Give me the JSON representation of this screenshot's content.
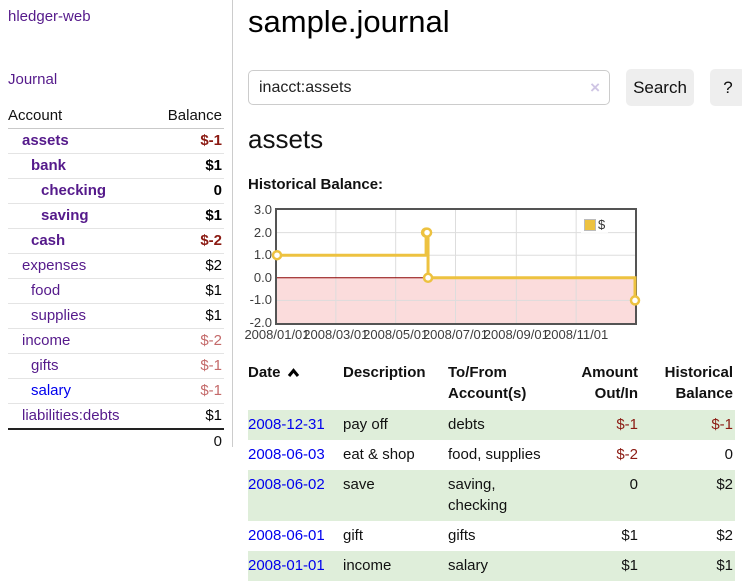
{
  "sidebar": {
    "brand": "hledger-web",
    "nav": {
      "journal": "Journal"
    },
    "accounts_table": {
      "headers": {
        "account": "Account",
        "balance": "Balance"
      },
      "rows": [
        {
          "name": "assets",
          "indent": 0,
          "bold": true,
          "balance": "$-1",
          "neg": "dark"
        },
        {
          "name": "bank",
          "indent": 1,
          "bold": true,
          "balance": "$1"
        },
        {
          "name": "checking",
          "indent": 2,
          "bold": true,
          "balance": "0"
        },
        {
          "name": "saving",
          "indent": 2,
          "bold": true,
          "balance": "$1"
        },
        {
          "name": "cash",
          "indent": 1,
          "bold": true,
          "balance": "$-2",
          "neg": "dark"
        },
        {
          "name": "expenses",
          "indent": 0,
          "bold": false,
          "balance": "$2"
        },
        {
          "name": "food",
          "indent": 1,
          "bold": false,
          "balance": "$1"
        },
        {
          "name": "supplies",
          "indent": 1,
          "bold": false,
          "balance": "$1"
        },
        {
          "name": "income",
          "indent": 0,
          "bold": false,
          "balance": "$-2",
          "neg": "light"
        },
        {
          "name": "gifts",
          "indent": 1,
          "bold": false,
          "balance": "$-1",
          "neg": "light"
        },
        {
          "name": "salary",
          "indent": 1,
          "bold": false,
          "balance": "$-1",
          "neg": "light",
          "link": "blue"
        },
        {
          "name": "liabilities:debts",
          "indent": 0,
          "bold": false,
          "balance": "$1"
        }
      ],
      "total": "0"
    }
  },
  "header": {
    "title": "sample.journal"
  },
  "search": {
    "value": "inacct:assets",
    "clear": "×",
    "button": "Search",
    "help": "?"
  },
  "account_page": {
    "heading": "assets",
    "chart_label": "Historical Balance:"
  },
  "chart_data": {
    "type": "line",
    "title": "Historical Balance:",
    "step": "after",
    "x": [
      "2008-01-01",
      "2008-06-01",
      "2008-06-02",
      "2008-06-03",
      "2008-12-31"
    ],
    "values": [
      1,
      2,
      2,
      0,
      -1
    ],
    "xlim": [
      "2008-01-01",
      "2008-12-31"
    ],
    "ylim": [
      -2,
      3
    ],
    "yticks": [
      3,
      2,
      1,
      0,
      -1,
      -2
    ],
    "ytick_labels": [
      "3.0",
      "2.0",
      "1.0",
      "0.0",
      "-1.0",
      "-2.0"
    ],
    "xticks": [
      "2008-01-01",
      "2008-03-01",
      "2008-05-01",
      "2008-07-01",
      "2008-09-01",
      "2008-11-01"
    ],
    "xtick_labels": [
      "2008/01/01",
      "2008/03/01",
      "2008/05/01",
      "2008/07/01",
      "2008/09/01",
      "2008/11/01"
    ],
    "legend": [
      {
        "label": "$",
        "color": "#edc240"
      }
    ],
    "grid": true,
    "legend_position": "top-right",
    "colors": {
      "line": "#edc240",
      "below_zero_fill": "#fbdcdc",
      "zero_line": "#8b0000",
      "grid": "#dddddd",
      "border": "#545454"
    }
  },
  "register": {
    "headers": [
      "Date",
      "Description",
      "To/From Account(s)",
      "Amount Out/In",
      "Historical Balance"
    ],
    "rows": [
      {
        "date": "2008-12-31",
        "description": "pay off",
        "accounts": "debts",
        "amount": "$-1",
        "amount_negative": true,
        "balance": "$-1",
        "balance_negative": true
      },
      {
        "date": "2008-06-03",
        "description": "eat & shop",
        "accounts": "food, supplies",
        "amount": "$-2",
        "amount_negative": true,
        "balance": "0",
        "balance_negative": false
      },
      {
        "date": "2008-06-02",
        "description": "save",
        "accounts": "saving, checking",
        "amount": "0",
        "amount_negative": false,
        "balance": "$2",
        "balance_negative": false
      },
      {
        "date": "2008-06-01",
        "description": "gift",
        "accounts": "gifts",
        "amount": "$1",
        "amount_negative": false,
        "balance": "$2",
        "balance_negative": false
      },
      {
        "date": "2008-01-01",
        "description": "income",
        "accounts": "salary",
        "amount": "$1",
        "amount_negative": false,
        "balance": "$1",
        "balance_negative": false
      }
    ]
  }
}
